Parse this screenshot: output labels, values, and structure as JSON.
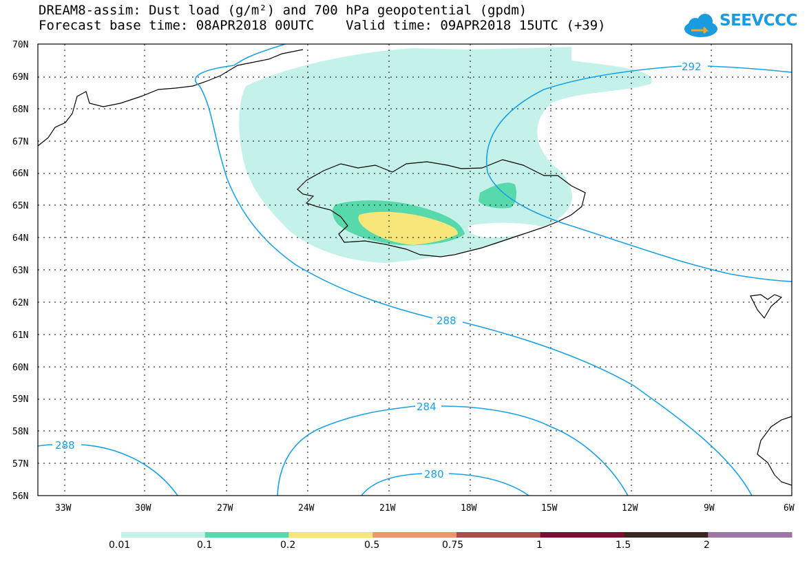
{
  "header": {
    "title": "DREAM8-assim: Dust load (g/m²) and 700 hPa geopotential (gpdm)",
    "subtitle": "Forecast base time: 08APR2018 00UTC    Valid time: 09APR2018 15UTC (+39)",
    "logo_text": "SEEVCCC"
  },
  "map": {
    "lat_labels": [
      "70N",
      "69N",
      "68N",
      "67N",
      "66N",
      "65N",
      "64N",
      "63N",
      "62N",
      "61N",
      "60N",
      "59N",
      "58N",
      "57N",
      "56N"
    ],
    "lon_labels": [
      "33W",
      "30W",
      "27W",
      "24W",
      "21W",
      "18W",
      "15W",
      "12W",
      "9W",
      "6W"
    ],
    "contour_labels": [
      "292",
      "288",
      "284",
      "280",
      "288"
    ],
    "line_color": "#1aa0e6"
  },
  "colorbar": {
    "colors": [
      "#c4f1e9",
      "#57d9ab",
      "#f7e77a",
      "#e49a6c",
      "#a3504a",
      "#7a0e33",
      "#3a2620",
      "#9b76a6"
    ],
    "labels": [
      "0.01",
      "0.1",
      "0.2",
      "0.5",
      "0.75",
      "1",
      "1.5",
      "2"
    ]
  }
}
